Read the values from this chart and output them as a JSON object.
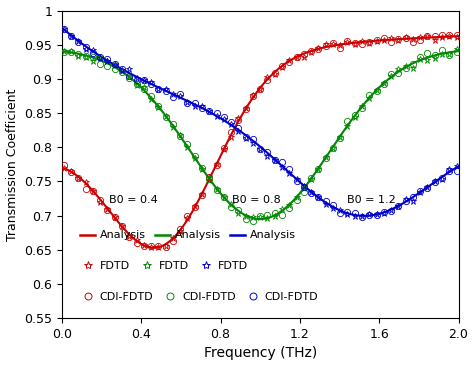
{
  "title": "",
  "xlabel": "Frequency (THz)",
  "ylabel": "Transmission Coefficient",
  "xlim": [
    0,
    2
  ],
  "ylim": [
    0.55,
    1.0
  ],
  "xticks": [
    0,
    0.4,
    0.8,
    1.2,
    1.6,
    2
  ],
  "yticks": [
    0.55,
    0.6,
    0.65,
    0.7,
    0.75,
    0.8,
    0.85,
    0.9,
    0.95,
    1
  ],
  "ytick_labels": [
    "0.55",
    "0.6",
    "0.65",
    "0.7",
    "0.75",
    "0.8",
    "0.85",
    "0.9",
    "0.95",
    "1"
  ],
  "curves": [
    {
      "label": "B0=0.4",
      "color": "#cc0000",
      "B0": 0.4,
      "f_min": 0.5,
      "T_start": 0.82,
      "T_min": 0.655,
      "T_end": 0.97,
      "sigma": 0.28
    },
    {
      "label": "B0=0.8",
      "color": "#008800",
      "B0": 0.8,
      "f_min": 1.0,
      "T_start": 0.945,
      "T_min": 0.695,
      "T_end": 0.945,
      "sigma": 0.35
    },
    {
      "label": "B0=1.2",
      "color": "#0000cc",
      "B0": 1.2,
      "f_min": 1.5,
      "T_start": 0.975,
      "T_min": 0.7,
      "T_end": 0.81,
      "sigma": 0.35
    }
  ],
  "legend_texts": {
    "B0_04": "B0 = 0.4",
    "B0_08": "B0 = 0.8",
    "B0_12": "B0 = 1.2",
    "analysis": "Analysis",
    "fdtd": "FDTD",
    "cdi_fdtd": "CDI-FDTD"
  },
  "line_width": 1.5,
  "marker_size_star": 5,
  "marker_size_circle": 4.5,
  "n_markers": 55,
  "noise_star": 0.002,
  "noise_circle": 0.003,
  "fig_width": 4.74,
  "fig_height": 3.66,
  "dpi": 100
}
